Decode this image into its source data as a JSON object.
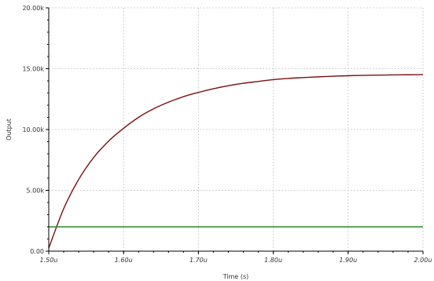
{
  "chart_data": {
    "type": "line",
    "title": "",
    "xlabel": "Time (s)",
    "ylabel": "Output",
    "xlim": [
      1.5e-06,
      2e-06
    ],
    "ylim": [
      0,
      20000
    ],
    "grid": true,
    "grid_color": "#d0d0d0",
    "axis_color": "#000000",
    "x_ticks": [
      {
        "value": 1.5e-06,
        "label": "1.50u"
      },
      {
        "value": 1.6e-06,
        "label": "1.60u"
      },
      {
        "value": 1.7e-06,
        "label": "1.70u"
      },
      {
        "value": 1.8e-06,
        "label": "1.80u"
      },
      {
        "value": 1.9e-06,
        "label": "1.90u"
      },
      {
        "value": 2e-06,
        "label": "2.00u"
      }
    ],
    "y_ticks": [
      {
        "value": 0,
        "label": "0.00"
      },
      {
        "value": 5000,
        "label": "5.00k"
      },
      {
        "value": 10000,
        "label": "10.00k"
      },
      {
        "value": 15000,
        "label": "15.00k"
      },
      {
        "value": 20000,
        "label": "20.00k"
      }
    ],
    "series": [
      {
        "color": "#7b1010",
        "x": [
          1.5e-06,
          1.52e-06,
          1.54e-06,
          1.56e-06,
          1.58e-06,
          1.6e-06,
          1.62e-06,
          1.64e-06,
          1.66e-06,
          1.68e-06,
          1.7e-06,
          1.72e-06,
          1.74e-06,
          1.76e-06,
          1.78e-06,
          1.8e-06,
          1.82e-06,
          1.84e-06,
          1.86e-06,
          1.88e-06,
          1.9e-06,
          1.92e-06,
          1.94e-06,
          1.96e-06,
          1.98e-06,
          2e-06
        ],
        "y": [
          250,
          3500,
          5900,
          7700,
          9050,
          10100,
          11000,
          11700,
          12250,
          12700,
          13050,
          13350,
          13600,
          13800,
          13950,
          14100,
          14200,
          14270,
          14330,
          14380,
          14420,
          14450,
          14470,
          14490,
          14500,
          14510
        ]
      },
      {
        "color": "#2a8a2a",
        "x": [
          1.5e-06,
          2e-06
        ],
        "y": [
          2000,
          2000
        ]
      }
    ]
  }
}
